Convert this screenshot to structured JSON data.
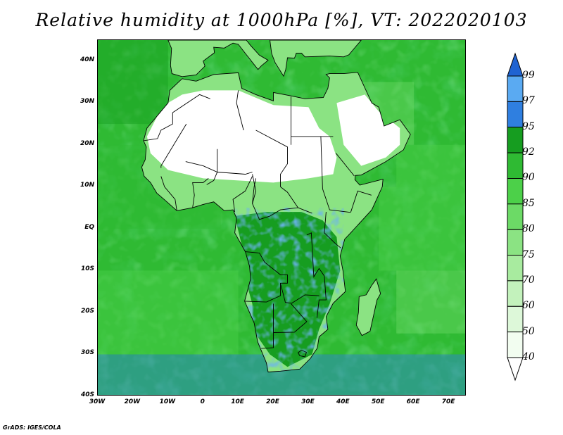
{
  "title": "Relative humidity at 1000hPa [%], VT: 2022020103",
  "footer": "GrADS: IGES/COLA",
  "lat_ticks": [
    "40N",
    "30N",
    "20N",
    "10N",
    "EQ",
    "10S",
    "20S",
    "30S",
    "40S"
  ],
  "lon_ticks": [
    "30W",
    "20W",
    "10W",
    "0",
    "10E",
    "20E",
    "30E",
    "40E",
    "50E",
    "60E",
    "70E"
  ],
  "colorbar": {
    "levels": [
      "40",
      "50",
      "60",
      "70",
      "75",
      "80",
      "85",
      "90",
      "92",
      "95",
      "97",
      "99"
    ],
    "colors": [
      "#f2fdf0",
      "#ddf8d9",
      "#c3f2bc",
      "#a8eb9f",
      "#8be383",
      "#6cda66",
      "#4cd049",
      "#2fba33",
      "#169d20",
      "#2f7fe0",
      "#5aaaf2",
      "#1f63d2"
    ]
  },
  "map": {
    "ocean": "#ddf8d9",
    "dry": "#ffffff",
    "wet": "#2f7fe0",
    "border": "#000000",
    "ocean_base": 0.62,
    "zones": [
      {
        "lat_min": 0,
        "lat_max": 20,
        "lon_min": -30,
        "lon_max": 5,
        "value": 0.6
      },
      {
        "lat_min": 25,
        "lat_max": 45,
        "lon_min": -30,
        "lon_max": -10,
        "value": 0.7
      },
      {
        "lat_min": -30,
        "lat_max": -10,
        "lon_min": -30,
        "lon_max": 10,
        "value": 0.5
      },
      {
        "lat_min": -10,
        "lat_max": 10,
        "lon_min": 50,
        "lon_max": 75,
        "value": 0.55
      },
      {
        "lat_min": -25,
        "lat_max": -10,
        "lon_min": 55,
        "lon_max": 75,
        "value": 0.45
      },
      {
        "lat_min": -40,
        "lat_max": -30,
        "lon_min": -30,
        "lon_max": 75,
        "value": 0.85
      },
      {
        "lat_min": 20,
        "lat_max": 35,
        "lon_min": 40,
        "lon_max": 60,
        "value": 0.45
      },
      {
        "lat_min": 10,
        "lat_max": 20,
        "lon_min": 55,
        "lon_max": 75,
        "value": 0.55
      }
    ]
  }
}
